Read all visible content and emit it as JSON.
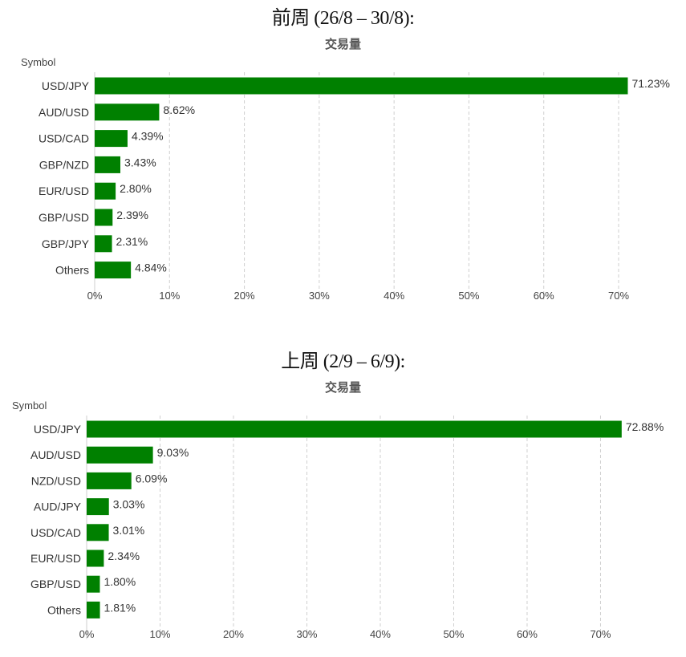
{
  "chart_data": [
    {
      "type": "bar",
      "orientation": "horizontal",
      "heading": "前周 (26/8 – 30/8):",
      "title": "交易量",
      "ylabel": "Symbol",
      "categories": [
        "USD/JPY",
        "AUD/USD",
        "USD/CAD",
        "GBP/NZD",
        "EUR/USD",
        "GBP/USD",
        "GBP/JPY",
        "Others"
      ],
      "values": [
        71.23,
        8.62,
        4.39,
        3.43,
        2.8,
        2.39,
        2.31,
        4.84
      ],
      "value_labels": [
        "71.23%",
        "8.62%",
        "4.39%",
        "3.43%",
        "2.80%",
        "2.39%",
        "2.31%",
        "4.84%"
      ],
      "xticks": [
        "0%",
        "10%",
        "20%",
        "30%",
        "40%",
        "50%",
        "60%",
        "70%"
      ],
      "xlim": [
        0,
        71.5
      ],
      "grid": true,
      "color": "#008000"
    },
    {
      "type": "bar",
      "orientation": "horizontal",
      "heading": "上周 (2/9 – 6/9):",
      "title": "交易量",
      "ylabel": "Symbol",
      "categories": [
        "USD/JPY",
        "AUD/USD",
        "NZD/USD",
        "AUD/JPY",
        "USD/CAD",
        "EUR/USD",
        "GBP/USD",
        "Others"
      ],
      "values": [
        72.88,
        9.03,
        6.09,
        3.03,
        3.01,
        2.34,
        1.8,
        1.81
      ],
      "value_labels": [
        "72.88%",
        "9.03%",
        "6.09%",
        "3.03%",
        "3.01%",
        "2.34%",
        "1.80%",
        "1.81%"
      ],
      "xticks": [
        "0%",
        "10%",
        "20%",
        "30%",
        "40%",
        "50%",
        "60%",
        "70%"
      ],
      "xlim": [
        0,
        72.9
      ],
      "grid": true,
      "color": "#008000"
    }
  ]
}
